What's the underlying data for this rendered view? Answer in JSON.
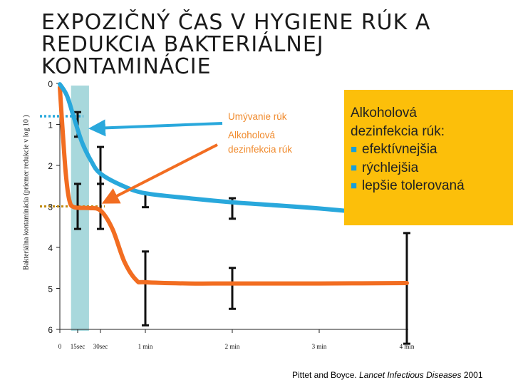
{
  "title_lines": [
    "EXPOZIČNÝ ČAS V HYGIENE RÚK A",
    "REDUKCIA BAKTERIÁLNEJ",
    "KONTAMINÁCIE"
  ],
  "colors": {
    "handwash": "#29a8dc",
    "alcohol": "#f26d21",
    "band": "#a8d8dc",
    "callout_bg": "#fcbf0a",
    "bullet": "#1a9fd8"
  },
  "callout": {
    "heading_lines": [
      "Alkoholová",
      "dezinfekcia rúk:"
    ],
    "bullet_icon": "square-bullet",
    "bullets": [
      "efektívnejšia",
      "rýchlejšia",
      "lepšie tolerovaná"
    ]
  },
  "source": {
    "authors": "Pittet and Boyce. ",
    "journal": "Lancet Infectious Diseases",
    "year": " 2001"
  },
  "chart_data": {
    "type": "line",
    "ylabel": "Bakteriálna kontaminácia (priemer redukcie v log 10 )",
    "x_ticks": [
      0,
      15,
      30,
      60,
      120,
      180,
      240
    ],
    "x_tick_labels": [
      "0",
      "15sec",
      "30sec",
      "1 min",
      "2 min",
      "3 min",
      "4 min"
    ],
    "y_ticks": [
      0,
      1,
      2,
      3,
      4,
      5,
      6
    ],
    "xlim": [
      0,
      240
    ],
    "ylim": [
      0,
      6
    ],
    "y_inverted": true,
    "highlight_band_x": [
      10,
      22
    ],
    "series": [
      {
        "name": "Umývanie rúk",
        "key": "handwash",
        "curve": [
          [
            0,
            0.02
          ],
          [
            6,
            0.3
          ],
          [
            12,
            0.85
          ],
          [
            18,
            1.45
          ],
          [
            24,
            1.9
          ],
          [
            30,
            2.2
          ],
          [
            45,
            2.5
          ],
          [
            60,
            2.68
          ],
          [
            90,
            2.8
          ],
          [
            120,
            2.9
          ],
          [
            180,
            3.05
          ],
          [
            240,
            3.25
          ]
        ],
        "error_bars": [
          [
            15,
            1.0,
            0.3
          ],
          [
            30,
            2.0,
            0.45
          ],
          [
            60,
            2.85,
            0.17
          ],
          [
            120,
            3.05,
            0.25
          ],
          [
            240,
            3.25,
            0.05
          ]
        ],
        "guide_level": 0.8
      },
      {
        "name": "Alkoholová dezinfekcia rúk",
        "key": "alcohol",
        "curve": [
          [
            0,
            0.1
          ],
          [
            2,
            1.0
          ],
          [
            5,
            2.2
          ],
          [
            8,
            2.85
          ],
          [
            12,
            3.02
          ],
          [
            22,
            3.04
          ],
          [
            30,
            3.1
          ],
          [
            38,
            3.55
          ],
          [
            46,
            4.35
          ],
          [
            54,
            4.8
          ],
          [
            60,
            4.85
          ],
          [
            90,
            4.88
          ],
          [
            120,
            4.88
          ],
          [
            180,
            4.88
          ],
          [
            240,
            4.87
          ]
        ],
        "error_bars": [
          [
            15,
            3.0,
            0.55
          ],
          [
            30,
            3.0,
            0.55
          ],
          [
            60,
            5.0,
            0.9
          ],
          [
            120,
            5.0,
            0.5
          ],
          [
            240,
            5.0,
            1.35
          ]
        ],
        "guide_level": 3.0
      }
    ]
  }
}
